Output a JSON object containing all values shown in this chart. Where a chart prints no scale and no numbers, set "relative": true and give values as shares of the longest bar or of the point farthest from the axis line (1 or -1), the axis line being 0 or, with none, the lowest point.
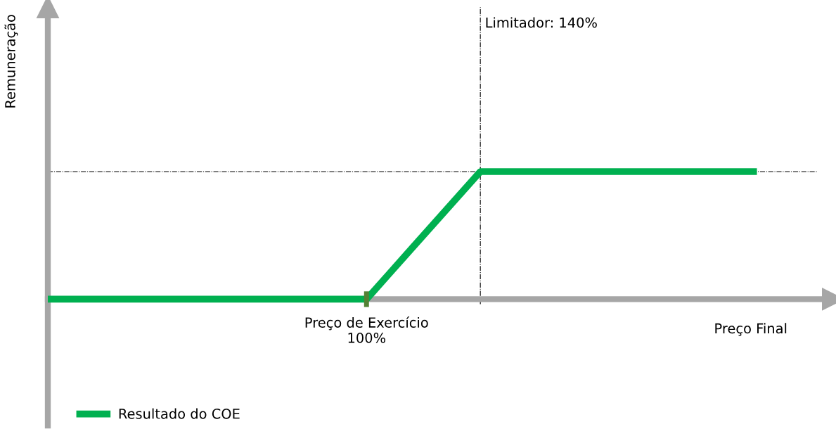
{
  "chart_data": {
    "type": "line",
    "relative": true,
    "xlabel": "Preço Final",
    "ylabel": "Remuneração",
    "categories": [
      null,
      null,
      null,
      null,
      null,
      null,
      null,
      null,
      null,
      null,
      null,
      null,
      null,
      null,
      null,
      null,
      null,
      null,
      null,
      null,
      null,
      null,
      null,
      null,
      null,
      null,
      null,
      null,
      null,
      null,
      null,
      null
    ],
    "series": [
      {
        "name": "Resultado do COE",
        "color": "#00b050",
        "values": [
          0,
          0,
          0,
          0,
          0,
          0,
          0,
          0,
          0,
          0,
          0,
          0,
          0,
          0,
          0,
          0.2,
          0.4,
          0.6,
          0.8,
          1,
          1,
          1,
          1,
          1,
          1,
          1,
          1,
          1,
          1,
          1,
          1,
          1
        ]
      }
    ],
    "ref_lines": [
      {
        "axis": "x",
        "label": "Limitador: 140%",
        "color": "#000000",
        "line_style": "dashdot"
      },
      {
        "axis": "y",
        "value": 1,
        "color": "#000000",
        "line_style": "dashdot"
      }
    ],
    "annotations": [
      "Preço de Exercício\n100%"
    ],
    "legend": "bottom left",
    "marker": "none",
    "line_style": "solid"
  }
}
